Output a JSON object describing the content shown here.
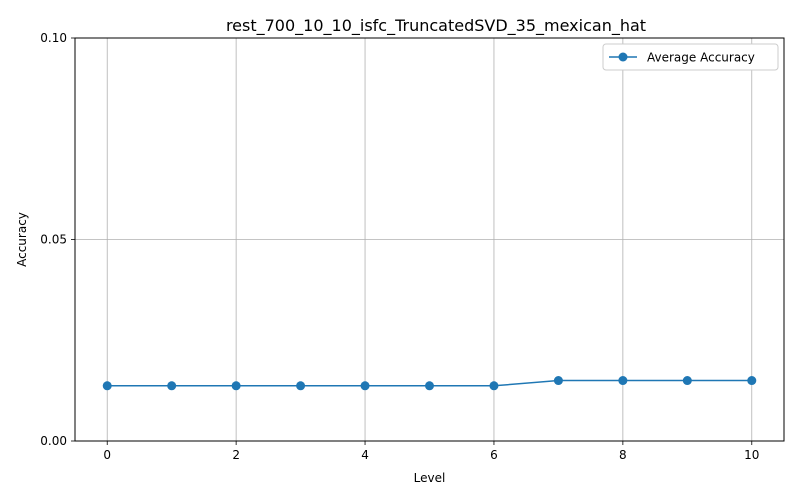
{
  "chart_data": {
    "type": "line",
    "title": "rest_700_10_10_isfc_TruncatedSVD_35_mexican_hat",
    "xlabel": "Level",
    "ylabel": "Accuracy",
    "x": [
      0,
      1,
      2,
      3,
      4,
      5,
      6,
      7,
      8,
      9,
      10
    ],
    "xlim": [
      -0.5,
      10.5
    ],
    "ylim": [
      0,
      0.1
    ],
    "xticks": [
      0,
      2,
      4,
      6,
      8,
      10
    ],
    "xtick_labels": [
      "0",
      "2",
      "4",
      "6",
      "8",
      "10"
    ],
    "yticks": [
      0,
      0.05,
      0.1
    ],
    "ytick_labels": [
      "0.00",
      "0.05",
      "0.10"
    ],
    "grid": true,
    "legend_position": "top-right",
    "series": [
      {
        "name": "Average Accuracy",
        "color": "#1f77b4",
        "marker": "circle",
        "values": [
          0.0137,
          0.0137,
          0.0137,
          0.0137,
          0.0137,
          0.0137,
          0.0137,
          0.015,
          0.015,
          0.015,
          0.015
        ]
      }
    ]
  }
}
